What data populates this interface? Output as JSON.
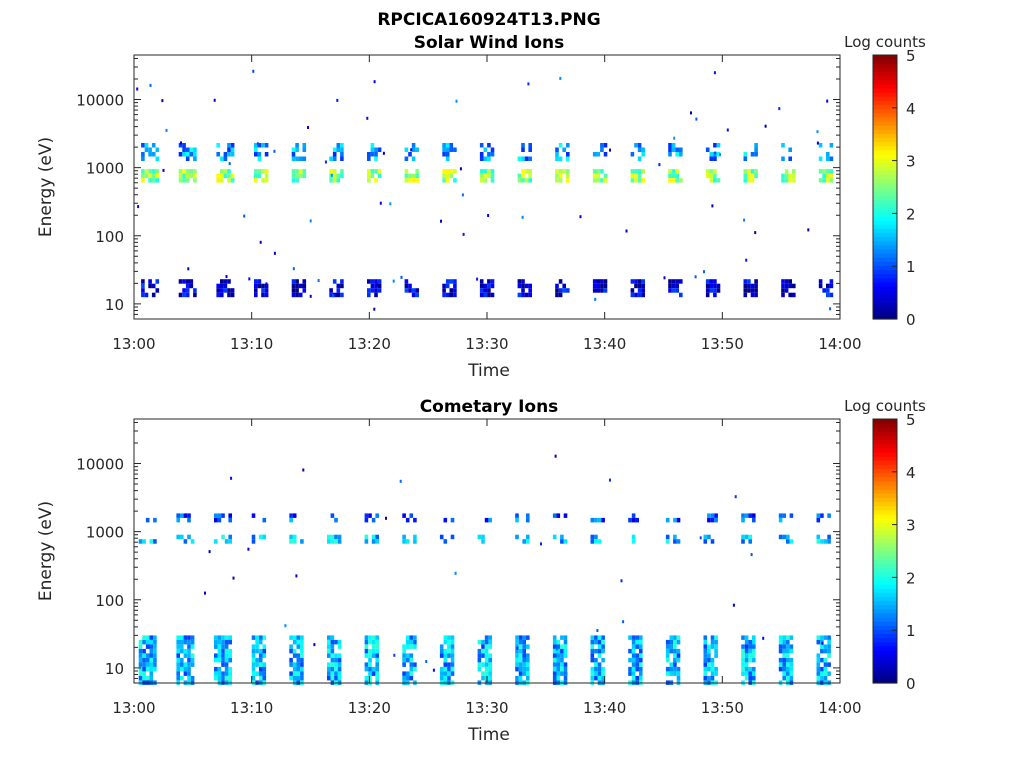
{
  "figure_title": "RPCICA160924T13.PNG",
  "chart_data": [
    {
      "type": "heatmap",
      "title": "Solar Wind Ions",
      "xlabel": "Time",
      "ylabel": "Energy (eV)",
      "x_ticks": [
        "13:00",
        "13:10",
        "13:20",
        "13:30",
        "13:40",
        "13:50",
        "14:00"
      ],
      "xlim_minutes": [
        0,
        60
      ],
      "y_ticks": [
        {
          "value": 10,
          "label": "10"
        },
        {
          "value": 100,
          "label": "100"
        },
        {
          "value": 1000,
          "label": "1000"
        },
        {
          "value": 10000,
          "label": "10000"
        }
      ],
      "ylim": [
        6,
        45000
      ],
      "y_scale": "log",
      "colorbar": {
        "label": "Log counts",
        "ticks": [
          "0",
          "1",
          "2",
          "3",
          "4",
          "5"
        ],
        "range": [
          0,
          5
        ],
        "colormap": "jet"
      },
      "periodic_bursts": {
        "start_minutes": 0.6,
        "period_minutes": 3.2,
        "count": 19,
        "bands": [
          {
            "energy_min": 13,
            "energy_max": 23,
            "log_counts": 0.4,
            "coverage": 0.7
          },
          {
            "energy_min": 640,
            "energy_max": 950,
            "log_counts": 2.6,
            "coverage": 0.85
          },
          {
            "energy_min": 1400,
            "energy_max": 2300,
            "log_counts": 1.4,
            "coverage": 0.5
          }
        ]
      },
      "scatter_density": 0.15
    },
    {
      "type": "heatmap",
      "title": "Cometary Ions",
      "xlabel": "Time",
      "ylabel": "Energy (eV)",
      "x_ticks": [
        "13:00",
        "13:10",
        "13:20",
        "13:30",
        "13:40",
        "13:50",
        "14:00"
      ],
      "xlim_minutes": [
        0,
        60
      ],
      "y_ticks": [
        {
          "value": 10,
          "label": "10"
        },
        {
          "value": 100,
          "label": "100"
        },
        {
          "value": 1000,
          "label": "1000"
        },
        {
          "value": 10000,
          "label": "10000"
        }
      ],
      "ylim": [
        6,
        45000
      ],
      "y_scale": "log",
      "colorbar": {
        "label": "Log counts",
        "ticks": [
          "0",
          "1",
          "2",
          "3",
          "4",
          "5"
        ],
        "range": [
          0,
          5
        ],
        "colormap": "jet"
      },
      "periodic_bursts": {
        "start_minutes": 0.4,
        "period_minutes": 3.2,
        "count": 19,
        "bands": [
          {
            "energy_min": 6,
            "energy_max": 30,
            "log_counts": 1.5,
            "coverage": 0.85
          },
          {
            "energy_min": 720,
            "energy_max": 900,
            "log_counts": 1.5,
            "coverage": 0.6
          },
          {
            "energy_min": 1550,
            "energy_max": 1850,
            "log_counts": 1.0,
            "coverage": 0.45
          }
        ]
      },
      "scatter_density": 0.06
    }
  ]
}
